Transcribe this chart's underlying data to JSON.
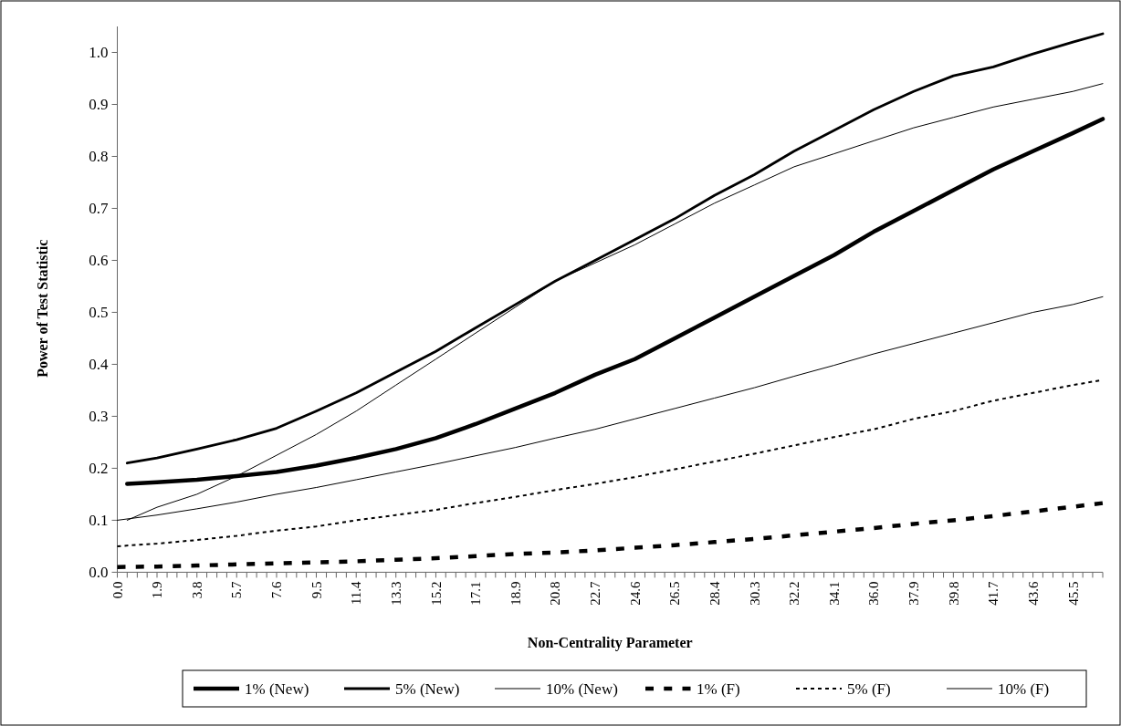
{
  "chart_data": {
    "type": "line",
    "xlabel": "Non-Centrality Parameter",
    "ylabel": "Power of Test Statistic",
    "xlim": [
      0,
      46.9
    ],
    "ylim": [
      0,
      1.05
    ],
    "yticks": [
      {
        "value": 0,
        "label": "0.0"
      },
      {
        "value": 0.1,
        "label": "0.1"
      },
      {
        "value": 0.2,
        "label": "0.2"
      },
      {
        "value": 0.3,
        "label": "0.3"
      },
      {
        "value": 0.4,
        "label": "0.4"
      },
      {
        "value": 0.5,
        "label": "0.5"
      },
      {
        "value": 0.6,
        "label": "0.6"
      },
      {
        "value": 0.7,
        "label": "0.7"
      },
      {
        "value": 0.8,
        "label": "0.8"
      },
      {
        "value": 0.9,
        "label": "0.9"
      },
      {
        "value": 1,
        "label": "1.0"
      }
    ],
    "xticks": [
      {
        "value": 0,
        "label": "0.0"
      },
      {
        "value": 1.89,
        "label": "1.9"
      },
      {
        "value": 3.79,
        "label": "3.8"
      },
      {
        "value": 5.68,
        "label": "5.7"
      },
      {
        "value": 7.58,
        "label": "7.6"
      },
      {
        "value": 9.47,
        "label": "9.5"
      },
      {
        "value": 11.37,
        "label": "11.4"
      },
      {
        "value": 13.26,
        "label": "13.3"
      },
      {
        "value": 15.16,
        "label": "15.2"
      },
      {
        "value": 17.05,
        "label": "17.1"
      },
      {
        "value": 18.95,
        "label": "18.9"
      },
      {
        "value": 20.84,
        "label": "20.8"
      },
      {
        "value": 22.74,
        "label": "22.7"
      },
      {
        "value": 24.63,
        "label": "24.6"
      },
      {
        "value": 26.53,
        "label": "26.5"
      },
      {
        "value": 28.42,
        "label": "28.4"
      },
      {
        "value": 30.32,
        "label": "30.3"
      },
      {
        "value": 32.21,
        "label": "32.2"
      },
      {
        "value": 34.11,
        "label": "34.1"
      },
      {
        "value": 36.0,
        "label": "36.0"
      },
      {
        "value": 37.9,
        "label": "37.9"
      },
      {
        "value": 39.79,
        "label": "39.8"
      },
      {
        "value": 41.69,
        "label": "41.7"
      },
      {
        "value": 43.58,
        "label": "43.6"
      },
      {
        "value": 45.48,
        "label": "45.5"
      },
      {
        "value": 0.47,
        "label": null
      },
      {
        "value": 0.95,
        "label": null
      },
      {
        "value": 1.42,
        "label": null
      },
      {
        "value": 2.37,
        "label": null
      },
      {
        "value": 2.84,
        "label": null
      },
      {
        "value": 3.32,
        "label": null
      },
      {
        "value": 4.26,
        "label": null
      },
      {
        "value": 4.74,
        "label": null
      },
      {
        "value": 5.21,
        "label": null
      },
      {
        "value": 6.16,
        "label": null
      },
      {
        "value": 6.63,
        "label": null
      },
      {
        "value": 7.11,
        "label": null
      },
      {
        "value": 8.05,
        "label": null
      },
      {
        "value": 8.53,
        "label": null
      },
      {
        "value": 9.0,
        "label": null
      },
      {
        "value": 9.95,
        "label": null
      },
      {
        "value": 10.42,
        "label": null
      },
      {
        "value": 10.9,
        "label": null
      },
      {
        "value": 11.84,
        "label": null
      },
      {
        "value": 12.32,
        "label": null
      },
      {
        "value": 12.79,
        "label": null
      },
      {
        "value": 13.74,
        "label": null
      },
      {
        "value": 14.21,
        "label": null
      },
      {
        "value": 14.68,
        "label": null
      },
      {
        "value": 15.63,
        "label": null
      },
      {
        "value": 16.11,
        "label": null
      },
      {
        "value": 16.58,
        "label": null
      },
      {
        "value": 17.53,
        "label": null
      },
      {
        "value": 18.0,
        "label": null
      },
      {
        "value": 18.47,
        "label": null
      },
      {
        "value": 19.42,
        "label": null
      },
      {
        "value": 19.9,
        "label": null
      },
      {
        "value": 20.37,
        "label": null
      },
      {
        "value": 21.32,
        "label": null
      },
      {
        "value": 21.79,
        "label": null
      },
      {
        "value": 22.26,
        "label": null
      },
      {
        "value": 23.21,
        "label": null
      },
      {
        "value": 23.69,
        "label": null
      },
      {
        "value": 24.16,
        "label": null
      },
      {
        "value": 25.11,
        "label": null
      },
      {
        "value": 25.58,
        "label": null
      },
      {
        "value": 26.05,
        "label": null
      },
      {
        "value": 27.0,
        "label": null
      },
      {
        "value": 27.47,
        "label": null
      },
      {
        "value": 27.95,
        "label": null
      },
      {
        "value": 28.9,
        "label": null
      },
      {
        "value": 29.37,
        "label": null
      },
      {
        "value": 29.84,
        "label": null
      },
      {
        "value": 30.79,
        "label": null
      },
      {
        "value": 31.26,
        "label": null
      },
      {
        "value": 31.74,
        "label": null
      },
      {
        "value": 32.69,
        "label": null
      },
      {
        "value": 33.16,
        "label": null
      },
      {
        "value": 33.63,
        "label": null
      },
      {
        "value": 34.58,
        "label": null
      },
      {
        "value": 35.05,
        "label": null
      },
      {
        "value": 35.53,
        "label": null
      },
      {
        "value": 36.47,
        "label": null
      },
      {
        "value": 36.95,
        "label": null
      },
      {
        "value": 37.42,
        "label": null
      },
      {
        "value": 38.37,
        "label": null
      },
      {
        "value": 38.84,
        "label": null
      },
      {
        "value": 39.32,
        "label": null
      },
      {
        "value": 40.26,
        "label": null
      },
      {
        "value": 40.74,
        "label": null
      },
      {
        "value": 41.21,
        "label": null
      },
      {
        "value": 42.16,
        "label": null
      },
      {
        "value": 42.63,
        "label": null
      },
      {
        "value": 43.11,
        "label": null
      },
      {
        "value": 44.05,
        "label": null
      },
      {
        "value": 44.53,
        "label": null
      },
      {
        "value": 45.0,
        "label": null
      },
      {
        "value": 45.95,
        "label": null
      },
      {
        "value": 46.42,
        "label": null
      },
      {
        "value": 46.9,
        "label": null
      }
    ],
    "grid": false,
    "legend": "bottom",
    "series": [
      {
        "name": "1% (New)",
        "color": "#000000",
        "line_style": "solid",
        "x": [
          0.47,
          1.89,
          3.79,
          5.68,
          7.58,
          9.47,
          11.37,
          13.26,
          15.16,
          17.05,
          18.95,
          20.84,
          22.74,
          24.63,
          26.53,
          28.42,
          30.32,
          32.21,
          34.11,
          36.0,
          37.9,
          39.79,
          41.69,
          43.58,
          45.48,
          46.9
        ],
        "values": [
          0.17,
          0.173,
          0.178,
          0.185,
          0.193,
          0.205,
          0.22,
          0.237,
          0.258,
          0.285,
          0.315,
          0.345,
          0.38,
          0.41,
          0.45,
          0.49,
          0.53,
          0.57,
          0.61,
          0.655,
          0.695,
          0.735,
          0.775,
          0.81,
          0.845,
          0.872
        ]
      },
      {
        "name": "5% (New)",
        "color": "#000000",
        "line_style": "solid",
        "x": [
          0.47,
          1.89,
          3.79,
          5.68,
          7.58,
          9.47,
          11.37,
          13.26,
          15.16,
          17.05,
          18.95,
          20.84,
          22.74,
          24.63,
          26.53,
          28.42,
          30.32,
          32.21,
          34.11,
          36.0,
          37.9,
          39.79,
          41.69,
          43.58,
          45.48,
          46.9
        ],
        "values": [
          0.21,
          0.22,
          0.237,
          0.255,
          0.277,
          0.31,
          0.345,
          0.385,
          0.425,
          0.47,
          0.515,
          0.56,
          0.6,
          0.64,
          0.68,
          0.725,
          0.765,
          0.81,
          0.85,
          0.89,
          0.925,
          0.955,
          0.972,
          0.997,
          1.02,
          1.036
        ]
      },
      {
        "name": "10% (New)",
        "color": "#000000",
        "line_style": "solid",
        "x": [
          0.47,
          1.89,
          3.79,
          5.68,
          7.58,
          9.47,
          11.37,
          13.26,
          15.16,
          17.05,
          18.95,
          20.84,
          22.74,
          24.63,
          26.53,
          28.42,
          30.32,
          32.21,
          34.11,
          36.0,
          37.9,
          39.79,
          41.69,
          43.58,
          45.48,
          46.9
        ],
        "values": [
          0.1,
          0.125,
          0.15,
          0.185,
          0.225,
          0.265,
          0.31,
          0.36,
          0.41,
          0.46,
          0.51,
          0.56,
          0.595,
          0.63,
          0.67,
          0.71,
          0.745,
          0.78,
          0.805,
          0.83,
          0.855,
          0.875,
          0.895,
          0.91,
          0.925,
          0.94
        ]
      },
      {
        "name": "1% (F)",
        "color": "#000000",
        "line_style": "dashed",
        "x": [
          0,
          1.89,
          3.79,
          5.68,
          7.58,
          9.47,
          11.37,
          13.26,
          15.16,
          17.05,
          18.95,
          20.84,
          22.74,
          24.63,
          26.53,
          28.42,
          30.32,
          32.21,
          34.11,
          36.0,
          37.9,
          39.79,
          41.69,
          43.58,
          45.48,
          46.9
        ],
        "values": [
          0.01,
          0.011,
          0.013,
          0.015,
          0.017,
          0.019,
          0.021,
          0.024,
          0.027,
          0.031,
          0.035,
          0.038,
          0.042,
          0.047,
          0.052,
          0.058,
          0.064,
          0.071,
          0.078,
          0.085,
          0.093,
          0.1,
          0.108,
          0.117,
          0.126,
          0.133
        ]
      },
      {
        "name": "5% (F)",
        "color": "#000000",
        "line_style": "dotted",
        "x": [
          0,
          1.89,
          3.79,
          5.68,
          7.58,
          9.47,
          11.37,
          13.26,
          15.16,
          17.05,
          18.95,
          20.84,
          22.74,
          24.63,
          26.53,
          28.42,
          30.32,
          32.21,
          34.11,
          36.0,
          37.9,
          39.79,
          41.69,
          43.58,
          45.48,
          46.9
        ],
        "values": [
          0.05,
          0.055,
          0.062,
          0.07,
          0.08,
          0.088,
          0.1,
          0.11,
          0.12,
          0.133,
          0.145,
          0.158,
          0.17,
          0.183,
          0.198,
          0.213,
          0.228,
          0.244,
          0.26,
          0.275,
          0.295,
          0.31,
          0.33,
          0.345,
          0.36,
          0.37
        ]
      },
      {
        "name": "10% (F)",
        "color": "#000000",
        "line_style": "solid",
        "x": [
          0,
          1.89,
          3.79,
          5.68,
          7.58,
          9.47,
          11.37,
          13.26,
          15.16,
          17.05,
          18.95,
          20.84,
          22.74,
          24.63,
          26.53,
          28.42,
          30.32,
          32.21,
          34.11,
          36.0,
          37.9,
          39.79,
          41.69,
          43.58,
          45.48,
          46.9
        ],
        "values": [
          0.1,
          0.11,
          0.122,
          0.135,
          0.15,
          0.163,
          0.178,
          0.193,
          0.208,
          0.224,
          0.24,
          0.258,
          0.275,
          0.295,
          0.315,
          0.335,
          0.355,
          0.377,
          0.398,
          0.42,
          0.44,
          0.46,
          0.48,
          0.5,
          0.515,
          0.53
        ]
      }
    ]
  }
}
